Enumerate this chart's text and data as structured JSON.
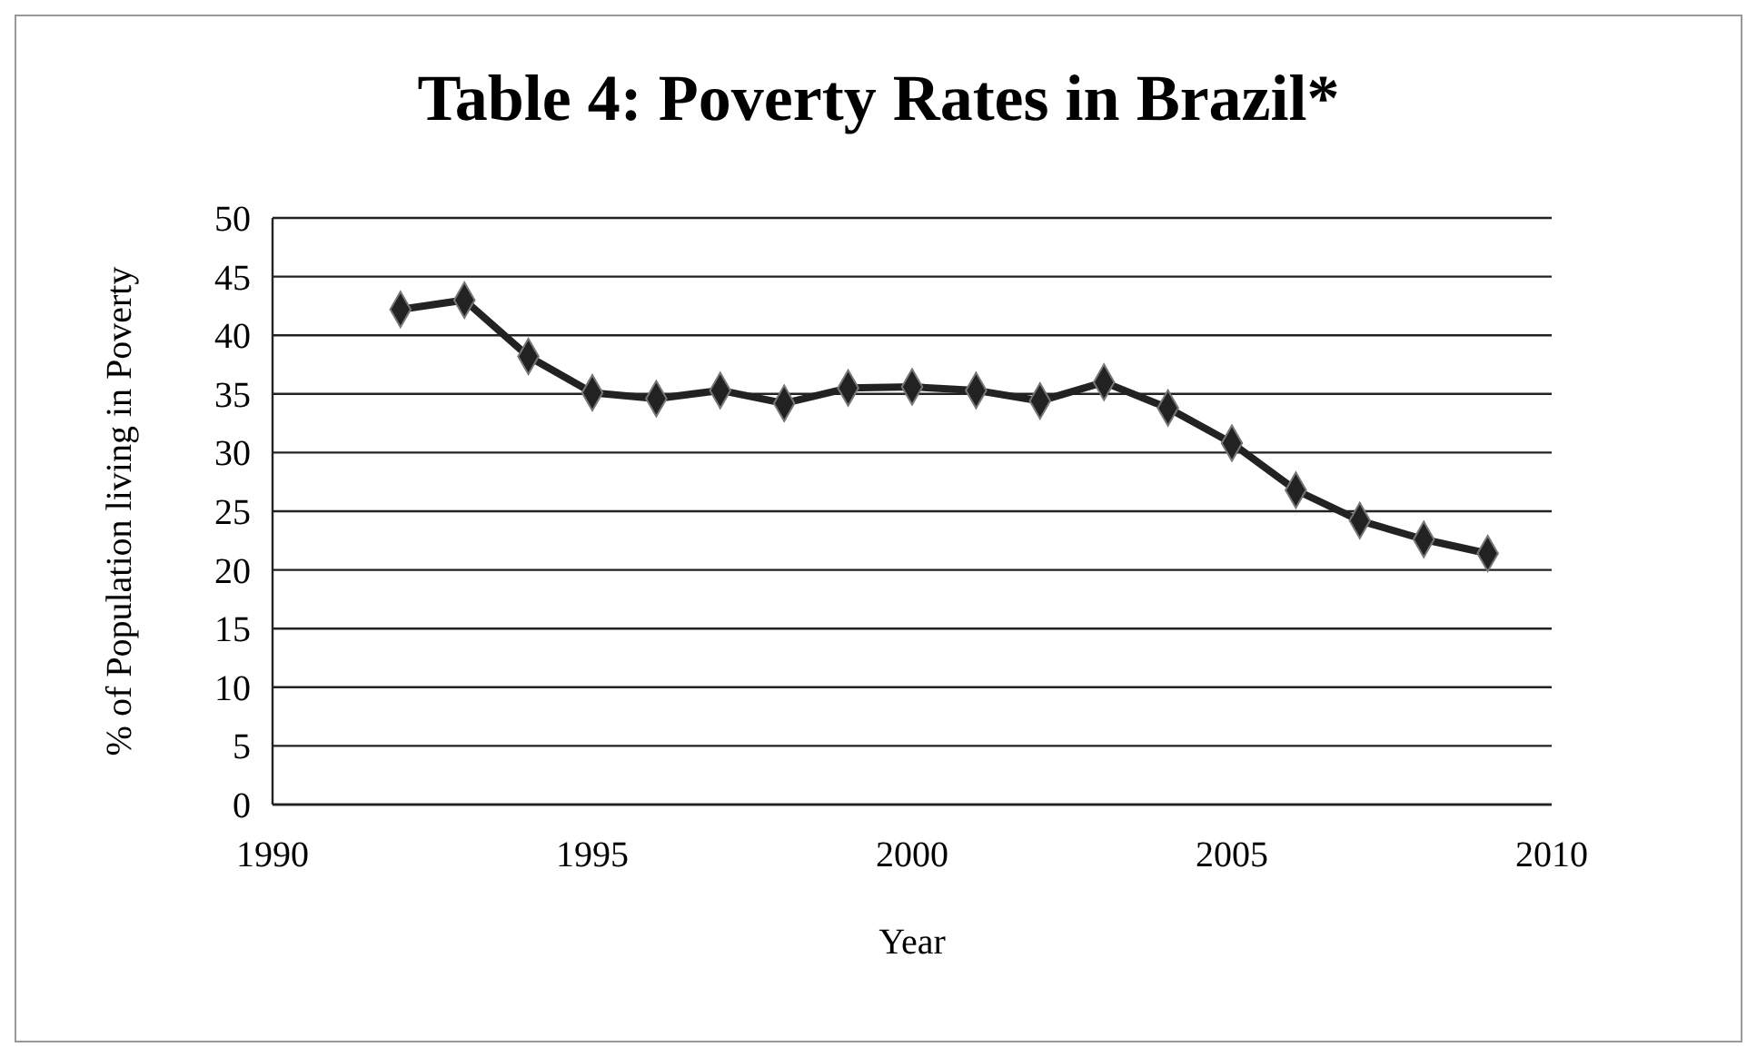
{
  "chart_data": {
    "type": "line",
    "title": "Table 4: Poverty Rates in Brazil*",
    "xlabel": "Year",
    "ylabel": "% of Population living in Poverty",
    "x": [
      1992,
      1993,
      1994,
      1995,
      1996,
      1997,
      1998,
      1999,
      2000,
      2001,
      2002,
      2003,
      2004,
      2005,
      2006,
      2007,
      2008,
      2009
    ],
    "series": [
      {
        "color": "#222222",
        "values": [
          42.2,
          43.0,
          38.2,
          35.1,
          34.6,
          35.3,
          34.2,
          35.5,
          35.6,
          35.3,
          34.4,
          36.0,
          33.8,
          30.8,
          26.8,
          24.2,
          22.6,
          21.4
        ]
      }
    ],
    "xlim": [
      1990,
      2010
    ],
    "xticks": [
      1990,
      1995,
      2000,
      2005,
      2010
    ],
    "ylim": [
      0,
      50
    ],
    "yticks": [
      0,
      5,
      10,
      15,
      20,
      25,
      30,
      35,
      40,
      45,
      50
    ],
    "grid": "y",
    "marker": "diamond",
    "line_style": "solid"
  }
}
